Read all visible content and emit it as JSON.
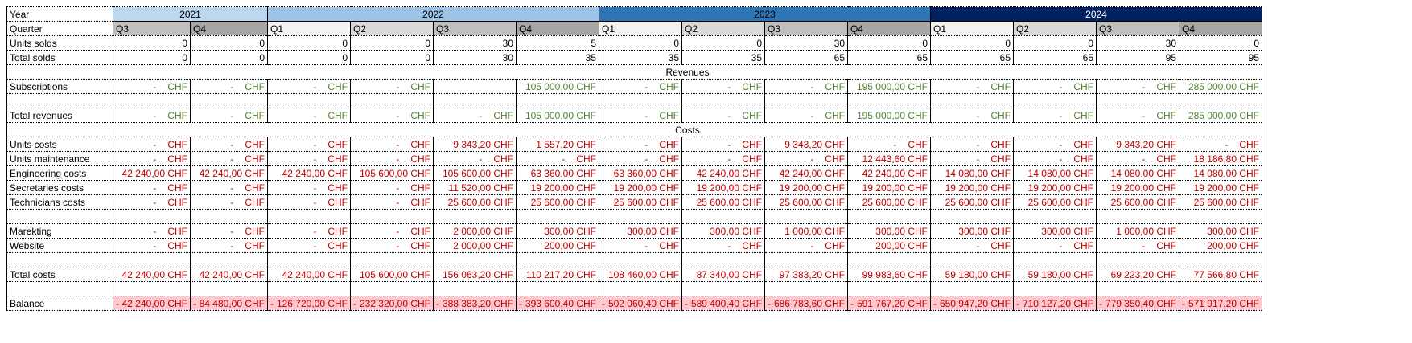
{
  "colors": {
    "year_2021": "#bdd7ee",
    "year_2022": "#9dc3e6",
    "year_2023": "#2e75b6",
    "year_2024": "#002060",
    "revenue_text": "#548235",
    "cost_text": "#c00000",
    "balance_fill": "#ffc7ce"
  },
  "labels": {
    "year": "Year",
    "quarter": "Quarter",
    "units_solds": "Units solds",
    "total_solds": "Total solds",
    "revenues_section": "Revenues",
    "subscriptions": "Subscriptions",
    "total_revenues": "Total revenues",
    "costs_section": "Costs",
    "units_costs": "Units costs",
    "units_maintenance": "Units maintenance",
    "engineering_costs": "Engineering costs",
    "secretaries_costs": "Secretaries costs",
    "technicians_costs": "Technicians costs",
    "marketing": "Marekting",
    "website": "Website",
    "total_costs": "Total costs",
    "balance": "Balance"
  },
  "years": [
    {
      "label": "2021",
      "span": 2
    },
    {
      "label": "2022",
      "span": 4
    },
    {
      "label": "2023",
      "span": 4
    },
    {
      "label": "2024",
      "span": 4
    }
  ],
  "quarters": [
    "Q3",
    "Q4",
    "Q1",
    "Q2",
    "Q3",
    "Q4",
    "Q1",
    "Q2",
    "Q3",
    "Q4",
    "Q1",
    "Q2",
    "Q3",
    "Q4"
  ],
  "units_solds": [
    "0",
    "0",
    "0",
    "0",
    "30",
    "5",
    "0",
    "0",
    "30",
    "0",
    "0",
    "0",
    "30",
    "0"
  ],
  "total_solds": [
    "0",
    "0",
    "0",
    "0",
    "30",
    "35",
    "35",
    "35",
    "65",
    "65",
    "65",
    "65",
    "95",
    "95"
  ],
  "subscriptions": [
    "-|CHF",
    "-|CHF",
    "-|CHF",
    "-|CHF",
    "",
    "105 000,00 CHF",
    "-|CHF",
    "-|CHF",
    "-|CHF",
    "195 000,00 CHF",
    "-|CHF",
    "-|CHF",
    "-|CHF",
    "285 000,00 CHF"
  ],
  "total_revenues": [
    "-|CHF",
    "-|CHF",
    "-|CHF",
    "-|CHF",
    "-|CHF",
    "105 000,00 CHF",
    "-|CHF",
    "-|CHF",
    "-|CHF",
    "195 000,00 CHF",
    "-|CHF",
    "-|CHF",
    "-|CHF",
    "285 000,00 CHF"
  ],
  "units_costs": [
    "-|CHF",
    "-|CHF",
    "-|CHF",
    "-|CHF",
    "9 343,20 CHF",
    "1 557,20 CHF",
    "-|CHF",
    "-|CHF",
    "9 343,20 CHF",
    "-|CHF",
    "-|CHF",
    "-|CHF",
    "9 343,20 CHF",
    "-|CHF"
  ],
  "units_maintenance": [
    "-|CHF",
    "-|CHF",
    "-|CHF",
    "-|CHF",
    "-|CHF",
    "-|CHF",
    "-|CHF",
    "-|CHF",
    "-|CHF",
    "12 443,60 CHF",
    "-|CHF",
    "-|CHF",
    "-|CHF",
    "18 186,80 CHF"
  ],
  "engineering_costs": [
    "42 240,00 CHF",
    "42 240,00 CHF",
    "42 240,00 CHF",
    "105 600,00 CHF",
    "105 600,00 CHF",
    "63 360,00 CHF",
    "63 360,00 CHF",
    "42 240,00 CHF",
    "42 240,00 CHF",
    "42 240,00 CHF",
    "14 080,00 CHF",
    "14 080,00 CHF",
    "14 080,00 CHF",
    "14 080,00 CHF"
  ],
  "secretaries_costs": [
    "-|CHF",
    "-|CHF",
    "-|CHF",
    "-|CHF",
    "11 520,00 CHF",
    "19 200,00 CHF",
    "19 200,00 CHF",
    "19 200,00 CHF",
    "19 200,00 CHF",
    "19 200,00 CHF",
    "19 200,00 CHF",
    "19 200,00 CHF",
    "19 200,00 CHF",
    "19 200,00 CHF"
  ],
  "technicians_costs": [
    "-|CHF",
    "-|CHF",
    "-|CHF",
    "-|CHF",
    "25 600,00 CHF",
    "25 600,00 CHF",
    "25 600,00 CHF",
    "25 600,00 CHF",
    "25 600,00 CHF",
    "25 600,00 CHF",
    "25 600,00 CHF",
    "25 600,00 CHF",
    "25 600,00 CHF",
    "25 600,00 CHF"
  ],
  "marketing": [
    "-|CHF",
    "-|CHF",
    "-|CHF",
    "-|CHF",
    "2 000,00 CHF",
    "300,00 CHF",
    "300,00 CHF",
    "300,00 CHF",
    "1 000,00 CHF",
    "300,00 CHF",
    "300,00 CHF",
    "300,00 CHF",
    "1 000,00 CHF",
    "300,00 CHF"
  ],
  "website": [
    "-|CHF",
    "-|CHF",
    "-|CHF",
    "-|CHF",
    "2 000,00 CHF",
    "200,00 CHF",
    "-|CHF",
    "-|CHF",
    "-|CHF",
    "200,00 CHF",
    "-|CHF",
    "-|CHF",
    "-|CHF",
    "200,00 CHF"
  ],
  "total_costs": [
    "42 240,00 CHF",
    "42 240,00 CHF",
    "42 240,00 CHF",
    "105 600,00 CHF",
    "156 063,20 CHF",
    "110 217,20 CHF",
    "108 460,00 CHF",
    "87 340,00 CHF",
    "97 383,20 CHF",
    "99 983,60 CHF",
    "59 180,00 CHF",
    "59 180,00 CHF",
    "69 223,20 CHF",
    "77 566,80 CHF"
  ],
  "balance": [
    "-|42 240,00 CHF",
    "-|84 480,00 CHF",
    "-|126 720,00 CHF",
    "-|232 320,00 CHF",
    "-|388 383,20 CHF",
    "-|393 600,40 CHF",
    "-|502 060,40 CHF",
    "-|589 400,40 CHF",
    "-|686 783,60 CHF",
    "-|591 767,20 CHF",
    "-|650 947,20 CHF",
    "-|710 127,20 CHF",
    "-|779 350,40 CHF",
    "-|571 917,20 CHF"
  ]
}
